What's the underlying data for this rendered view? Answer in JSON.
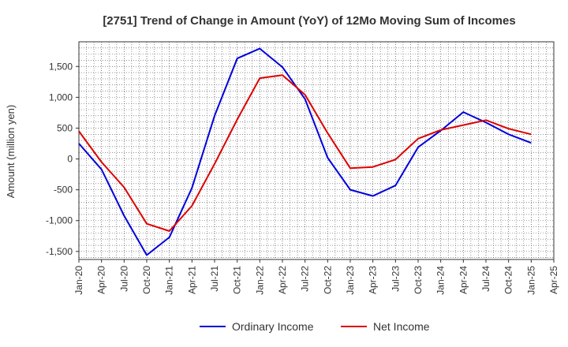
{
  "chart_data": {
    "type": "line",
    "title": "[2751]  Trend of Change in Amount (YoY) of 12Mo Moving Sum of Incomes",
    "xlabel": "",
    "ylabel": "Amount (million yen)",
    "categories": [
      "Jan-20",
      "Apr-20",
      "Jul-20",
      "Oct-20",
      "Jan-21",
      "Apr-21",
      "Jul-21",
      "Oct-21",
      "Jan-22",
      "Apr-22",
      "Jul-22",
      "Oct-22",
      "Jan-23",
      "Apr-23",
      "Jul-23",
      "Oct-23",
      "Jan-24",
      "Apr-24",
      "Jul-24",
      "Oct-24",
      "Jan-25",
      "Apr-25"
    ],
    "yticks": [
      -1500,
      -1000,
      -500,
      0,
      500,
      1000,
      1500
    ],
    "ytick_labels": [
      "-1,500",
      "-1,000",
      "-500",
      "0",
      "500",
      "1,000",
      "1,500"
    ],
    "ylim": [
      -1630,
      1900
    ],
    "grid": true,
    "legend_position": "bottom",
    "series": [
      {
        "name": "Ordinary Income",
        "color": "#0000dd",
        "values": [
          250,
          -170,
          -920,
          -1560,
          -1270,
          -470,
          700,
          1630,
          1790,
          1490,
          970,
          20,
          -500,
          -600,
          -430,
          190,
          460,
          760,
          590,
          400,
          260,
          null
        ]
      },
      {
        "name": "Net Income",
        "color": "#dd0000",
        "values": [
          450,
          -50,
          -460,
          -1050,
          -1170,
          -760,
          -80,
          640,
          1310,
          1360,
          1040,
          420,
          -150,
          -130,
          -10,
          330,
          470,
          550,
          630,
          490,
          400,
          null
        ]
      }
    ]
  }
}
